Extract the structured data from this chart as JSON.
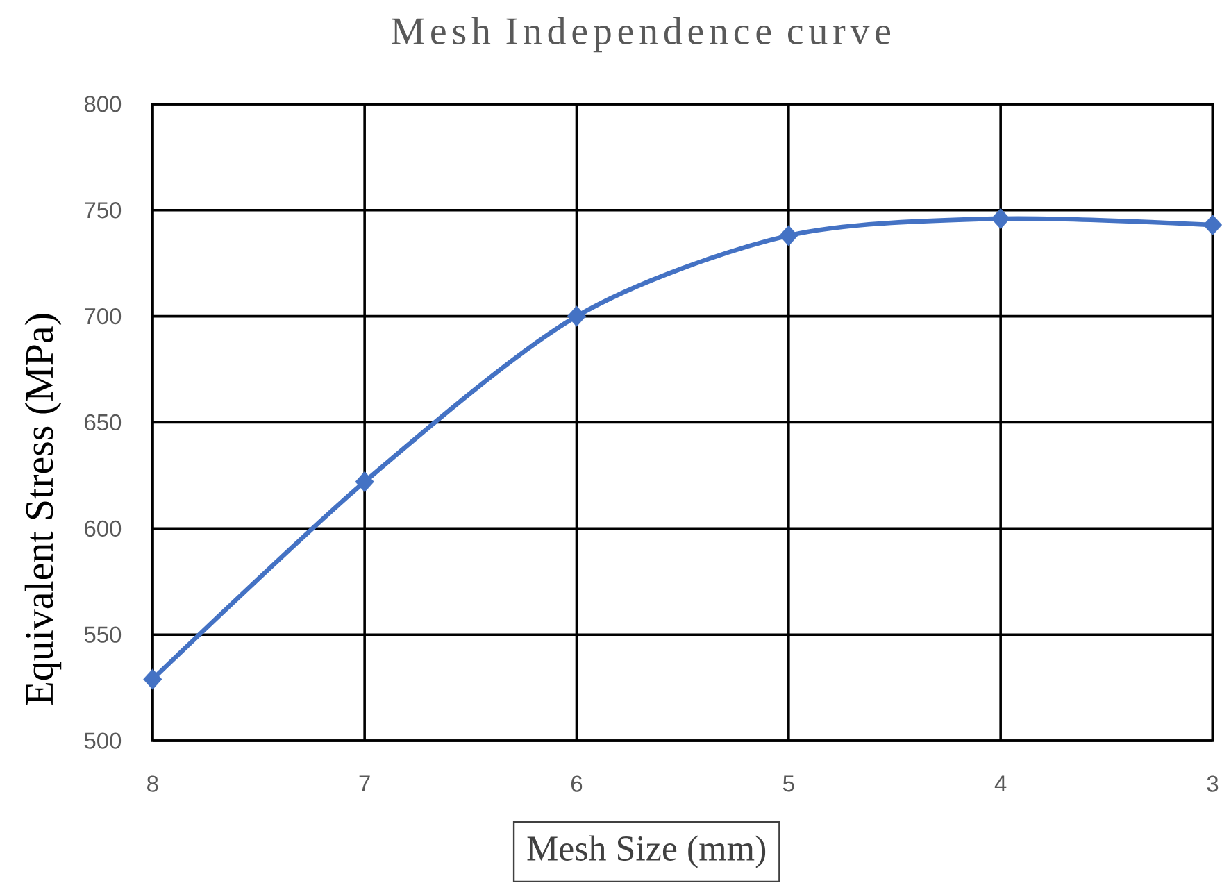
{
  "chart_data": {
    "type": "line",
    "title": "Mesh Independence curve",
    "xlabel": "Mesh Size (mm)",
    "ylabel": "Equivalent Stress (MPa)",
    "x": [
      8,
      7,
      6,
      5,
      4,
      3
    ],
    "series": [
      {
        "color": "#4472c4",
        "values": [
          529,
          622,
          700,
          738,
          746,
          743
        ]
      }
    ],
    "xlim": [
      8,
      3
    ],
    "ylim": [
      500,
      800
    ],
    "xticks": [
      8,
      7,
      6,
      5,
      4,
      3
    ],
    "yticks": [
      500,
      550,
      600,
      650,
      700,
      750,
      800
    ],
    "grid": true,
    "marker": "diamond",
    "line_style": "solid"
  }
}
